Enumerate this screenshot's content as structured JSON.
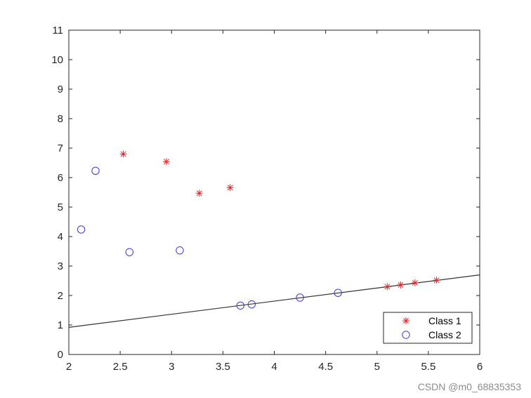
{
  "chart_data": {
    "type": "scatter",
    "title": "",
    "xlabel": "",
    "ylabel": "",
    "xlim": [
      2,
      6
    ],
    "ylim": [
      0,
      11
    ],
    "x_ticks": [
      "2",
      "2.5",
      "3",
      "3.5",
      "4",
      "4.5",
      "5",
      "5.5",
      "6"
    ],
    "y_ticks": [
      "0",
      "1",
      "2",
      "3",
      "4",
      "5",
      "6",
      "7",
      "8",
      "9",
      "10",
      "11"
    ],
    "grid": false,
    "legend_position": "bottom-right",
    "series": [
      {
        "name": "Class 1",
        "marker": "asterisk",
        "color": "#e8242a",
        "points": [
          [
            2.53,
            6.8
          ],
          [
            2.95,
            6.54
          ],
          [
            3.27,
            5.47
          ],
          [
            3.57,
            5.66
          ],
          [
            5.1,
            2.3
          ],
          [
            5.23,
            2.36
          ],
          [
            5.37,
            2.43
          ],
          [
            5.58,
            2.52
          ]
        ]
      },
      {
        "name": "Class 2",
        "marker": "circle",
        "color": "#3b3bd6",
        "points": [
          [
            2.12,
            4.24
          ],
          [
            2.26,
            6.23
          ],
          [
            2.59,
            3.47
          ],
          [
            3.08,
            3.53
          ],
          [
            3.67,
            1.66
          ],
          [
            3.78,
            1.7
          ],
          [
            4.25,
            1.93
          ],
          [
            4.62,
            2.09
          ]
        ]
      }
    ],
    "line": {
      "color": "#333333",
      "points": [
        [
          2,
          0.92
        ],
        [
          6,
          2.7
        ]
      ]
    }
  },
  "watermark": "CSDN @m0_68835353"
}
